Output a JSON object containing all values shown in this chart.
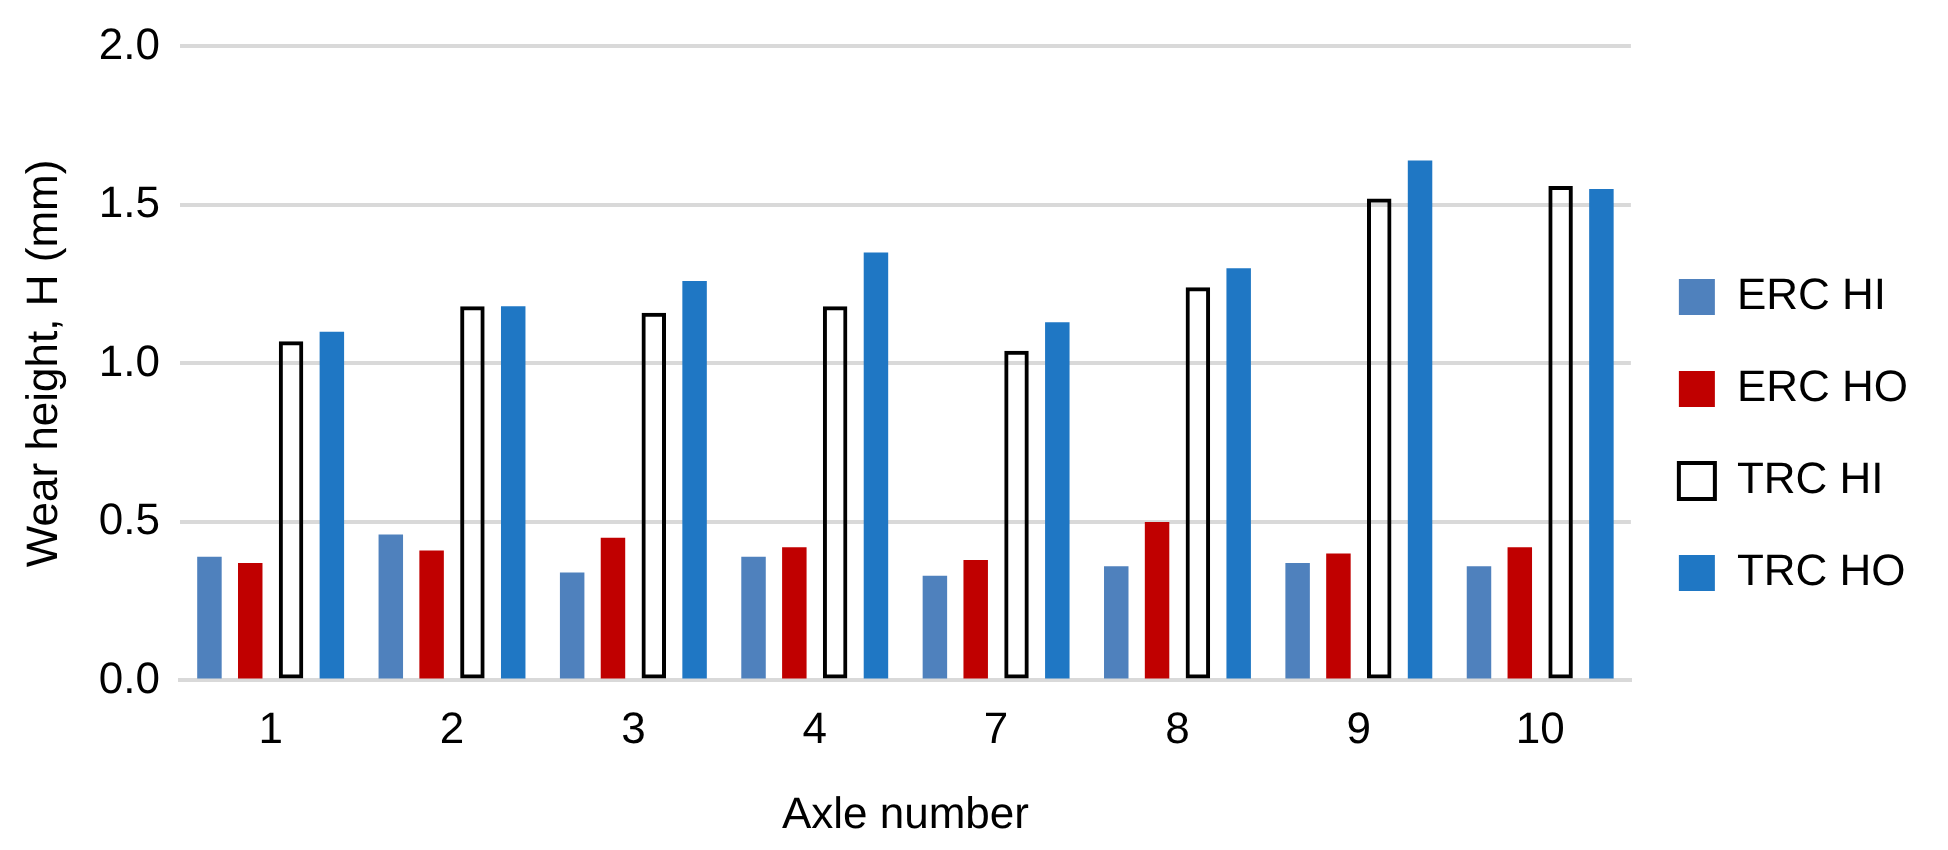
{
  "chart_data": {
    "type": "bar",
    "xlabel": "Axle number",
    "ylabel": "Wear height, H (mm)",
    "categories": [
      "1",
      "2",
      "3",
      "4",
      "7",
      "8",
      "9",
      "10"
    ],
    "series": [
      {
        "name": "ERC HI",
        "color": "#4f81bd",
        "values": [
          0.39,
          0.46,
          0.34,
          0.39,
          0.33,
          0.36,
          0.37,
          0.36
        ]
      },
      {
        "name": "ERC HO",
        "color": "#c00000",
        "values": [
          0.37,
          0.41,
          0.45,
          0.42,
          0.38,
          0.5,
          0.4,
          0.42
        ]
      },
      {
        "name": "TRC HI",
        "color": "#000000",
        "values": [
          1.07,
          1.18,
          1.16,
          1.18,
          1.04,
          1.24,
          1.52,
          1.56
        ]
      },
      {
        "name": "TRC HO",
        "color": "#1f77c4",
        "values": [
          1.1,
          1.18,
          1.26,
          1.35,
          1.13,
          1.3,
          1.64,
          1.55
        ]
      }
    ],
    "ylim": [
      0,
      2
    ],
    "yticks": [
      {
        "value": 0,
        "label": "0.0"
      },
      {
        "value": 0.5,
        "label": "0.5"
      },
      {
        "value": 1,
        "label": "1.0"
      },
      {
        "value": 1.5,
        "label": "1.5"
      },
      {
        "value": 2,
        "label": "2.0"
      }
    ],
    "grid": "y",
    "legend": "right"
  }
}
